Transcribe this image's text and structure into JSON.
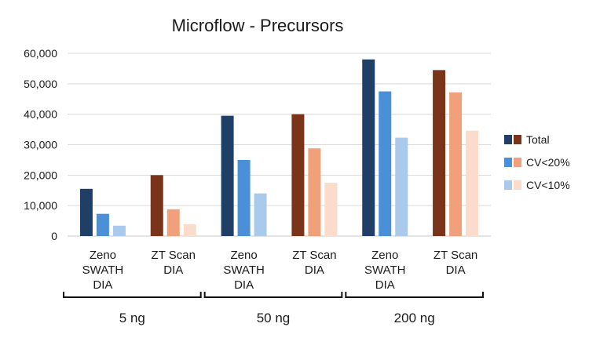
{
  "chart_data": {
    "type": "bar",
    "title": "Microflow - Precursors",
    "ylim": [
      0,
      60000
    ],
    "yticks": [
      "0",
      "10,000",
      "20,000",
      "30,000",
      "40,000",
      "50,000",
      "60,000"
    ],
    "grid": true,
    "legend_position": "right",
    "legend": [
      {
        "label": "Total",
        "swatches": [
          "#1f3f66",
          "#7a3419"
        ]
      },
      {
        "label": "CV<20%",
        "swatches": [
          "#4a90d9",
          "#f0a17c"
        ]
      },
      {
        "label": "CV<10%",
        "swatches": [
          "#a9caeb",
          "#fbdcca"
        ]
      }
    ],
    "groups": [
      "5 ng",
      "50 ng",
      "200 ng"
    ],
    "categories": [
      {
        "label": [
          "Zeno",
          "SWATH",
          "DIA"
        ],
        "group": "5 ng",
        "method": "Zeno SWATH DIA"
      },
      {
        "label": [
          "ZT Scan",
          "DIA"
        ],
        "group": "5 ng",
        "method": "ZT Scan DIA"
      },
      {
        "label": [
          "Zeno",
          "SWATH",
          "DIA"
        ],
        "group": "50 ng",
        "method": "Zeno SWATH DIA"
      },
      {
        "label": [
          "ZT Scan",
          "DIA"
        ],
        "group": "50 ng",
        "method": "ZT Scan DIA"
      },
      {
        "label": [
          "Zeno",
          "SWATH",
          "DIA"
        ],
        "group": "200 ng",
        "method": "Zeno SWATH DIA"
      },
      {
        "label": [
          "ZT Scan",
          "DIA"
        ],
        "group": "200 ng",
        "method": "ZT Scan DIA"
      }
    ],
    "series": [
      {
        "name": "Total",
        "values": [
          15500,
          20000,
          39500,
          40000,
          58000,
          54500
        ],
        "colors": [
          "#1f3f66",
          "#7a3419",
          "#1f3f66",
          "#7a3419",
          "#1f3f66",
          "#7a3419"
        ]
      },
      {
        "name": "CV<20%",
        "values": [
          7300,
          8800,
          25000,
          28800,
          47500,
          47200
        ],
        "colors": [
          "#4a90d9",
          "#f0a17c",
          "#4a90d9",
          "#f0a17c",
          "#4a90d9",
          "#f0a17c"
        ]
      },
      {
        "name": "CV<10%",
        "values": [
          3400,
          3900,
          14000,
          17500,
          32300,
          34600
        ],
        "colors": [
          "#a9caeb",
          "#fbdcca",
          "#a9caeb",
          "#fbdcca",
          "#a9caeb",
          "#fbdcca"
        ]
      }
    ]
  }
}
